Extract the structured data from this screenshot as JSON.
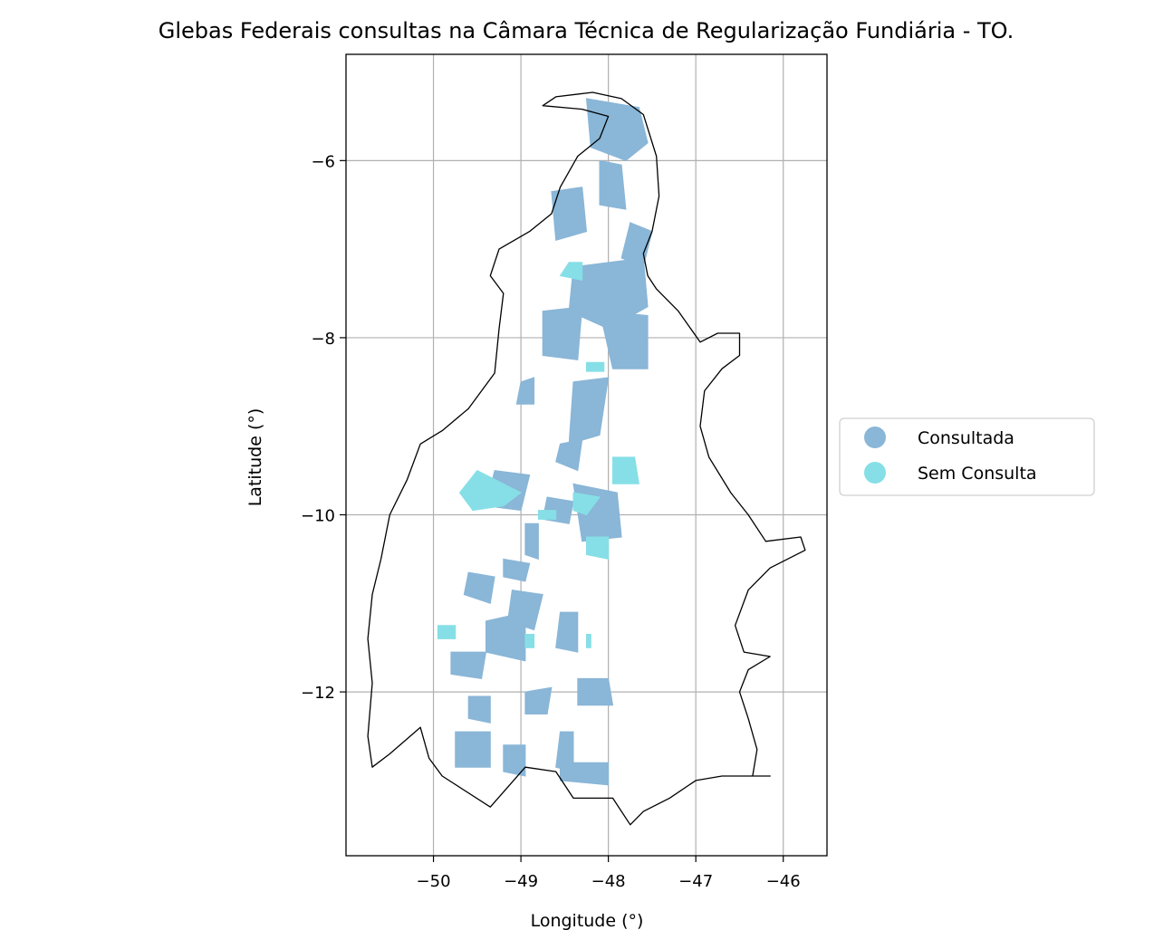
{
  "title": "Glebas Federais consultas na Câmara Técnica de Regularização Fundiária - TO.",
  "xlabel": "Longitude (°)",
  "ylabel": "Latitude (°)",
  "legend": {
    "placement": "right-center",
    "entries": [
      {
        "label": "Consultada",
        "color": "#8ab6d7"
      },
      {
        "label": "Sem Consulta",
        "color": "#86dfe6"
      }
    ]
  },
  "colors": {
    "consultada": "#8ab6d7",
    "sem_consulta": "#86dfe6",
    "border": "#000000",
    "grid": "#b0b0b0"
  },
  "chart_data": {
    "type": "map",
    "xlim": [
      -51.0,
      -45.5
    ],
    "ylim": [
      -13.85,
      -4.8
    ],
    "grid": true,
    "xticks": [
      -50,
      -49,
      -48,
      -47,
      -46
    ],
    "yticks": [
      -6,
      -8,
      -10,
      -12
    ],
    "xtick_labels": [
      "−50",
      "−49",
      "−48",
      "−47",
      "−46"
    ],
    "ytick_labels": [
      "−6",
      "−8",
      "−10",
      "−12"
    ],
    "state_outline": [
      [
        -48.18,
        -5.23
      ],
      [
        -47.85,
        -5.3
      ],
      [
        -47.6,
        -5.48
      ],
      [
        -47.45,
        -5.95
      ],
      [
        -47.42,
        -6.4
      ],
      [
        -47.5,
        -6.8
      ],
      [
        -47.6,
        -7.05
      ],
      [
        -47.55,
        -7.3
      ],
      [
        -47.45,
        -7.45
      ],
      [
        -47.2,
        -7.7
      ],
      [
        -46.95,
        -8.05
      ],
      [
        -46.75,
        -7.95
      ],
      [
        -46.5,
        -7.95
      ],
      [
        -46.5,
        -8.2
      ],
      [
        -46.7,
        -8.35
      ],
      [
        -46.9,
        -8.6
      ],
      [
        -46.95,
        -9.0
      ],
      [
        -46.85,
        -9.35
      ],
      [
        -46.6,
        -9.75
      ],
      [
        -46.4,
        -10.0
      ],
      [
        -46.2,
        -10.3
      ],
      [
        -45.8,
        -10.25
      ],
      [
        -45.75,
        -10.4
      ],
      [
        -46.15,
        -10.6
      ],
      [
        -46.4,
        -10.85
      ],
      [
        -46.55,
        -11.25
      ],
      [
        -46.45,
        -11.55
      ],
      [
        -46.15,
        -11.6
      ],
      [
        -46.4,
        -11.75
      ],
      [
        -46.5,
        -12.0
      ],
      [
        -46.4,
        -12.3
      ],
      [
        -46.3,
        -12.65
      ],
      [
        -46.35,
        -12.95
      ],
      [
        -46.15,
        -12.95
      ],
      [
        -46.7,
        -12.95
      ],
      [
        -47.0,
        -13.0
      ],
      [
        -47.3,
        -13.2
      ],
      [
        -47.6,
        -13.35
      ],
      [
        -47.75,
        -13.5
      ],
      [
        -47.95,
        -13.2
      ],
      [
        -48.4,
        -13.2
      ],
      [
        -48.6,
        -12.9
      ],
      [
        -48.95,
        -12.85
      ],
      [
        -49.35,
        -13.3
      ],
      [
        -49.9,
        -12.95
      ],
      [
        -50.05,
        -12.75
      ],
      [
        -50.15,
        -12.4
      ],
      [
        -50.5,
        -12.7
      ],
      [
        -50.7,
        -12.85
      ],
      [
        -50.75,
        -12.5
      ],
      [
        -50.7,
        -11.9
      ],
      [
        -50.75,
        -11.4
      ],
      [
        -50.7,
        -10.9
      ],
      [
        -50.6,
        -10.5
      ],
      [
        -50.5,
        -10.0
      ],
      [
        -50.3,
        -9.6
      ],
      [
        -50.15,
        -9.2
      ],
      [
        -49.9,
        -9.05
      ],
      [
        -49.6,
        -8.8
      ],
      [
        -49.3,
        -8.4
      ],
      [
        -49.25,
        -7.9
      ],
      [
        -49.2,
        -7.5
      ],
      [
        -49.35,
        -7.3
      ],
      [
        -49.25,
        -7.0
      ],
      [
        -48.9,
        -6.8
      ],
      [
        -48.65,
        -6.6
      ],
      [
        -48.55,
        -6.3
      ],
      [
        -48.35,
        -5.95
      ],
      [
        -48.1,
        -5.75
      ],
      [
        -48.0,
        -5.5
      ],
      [
        -48.3,
        -5.42
      ],
      [
        -48.75,
        -5.38
      ],
      [
        -48.6,
        -5.28
      ],
      [
        -48.18,
        -5.23
      ]
    ],
    "consultada_areas": [
      [
        [
          -48.25,
          -5.3
        ],
        [
          -47.65,
          -5.4
        ],
        [
          -47.55,
          -5.8
        ],
        [
          -47.8,
          -6.0
        ],
        [
          -48.2,
          -5.85
        ]
      ],
      [
        [
          -48.65,
          -6.35
        ],
        [
          -48.3,
          -6.3
        ],
        [
          -48.25,
          -6.8
        ],
        [
          -48.6,
          -6.9
        ]
      ],
      [
        [
          -48.1,
          -6.0
        ],
        [
          -47.85,
          -6.05
        ],
        [
          -47.8,
          -6.55
        ],
        [
          -48.1,
          -6.5
        ]
      ],
      [
        [
          -47.75,
          -6.7
        ],
        [
          -47.5,
          -6.8
        ],
        [
          -47.6,
          -7.2
        ],
        [
          -47.85,
          -7.1
        ]
      ],
      [
        [
          -48.4,
          -7.2
        ],
        [
          -47.6,
          -7.1
        ],
        [
          -47.55,
          -7.65
        ],
        [
          -48.0,
          -7.9
        ],
        [
          -48.45,
          -7.7
        ]
      ],
      [
        [
          -48.75,
          -7.7
        ],
        [
          -48.3,
          -7.65
        ],
        [
          -48.35,
          -8.25
        ],
        [
          -48.75,
          -8.2
        ]
      ],
      [
        [
          -48.1,
          -7.7
        ],
        [
          -47.55,
          -7.75
        ],
        [
          -47.55,
          -8.35
        ],
        [
          -47.95,
          -8.35
        ]
      ],
      [
        [
          -48.4,
          -8.5
        ],
        [
          -48.0,
          -8.45
        ],
        [
          -48.1,
          -9.1
        ],
        [
          -48.45,
          -9.2
        ]
      ],
      [
        [
          -49.0,
          -8.5
        ],
        [
          -48.85,
          -8.45
        ],
        [
          -48.85,
          -8.75
        ],
        [
          -49.05,
          -8.75
        ]
      ],
      [
        [
          -48.55,
          -9.2
        ],
        [
          -48.3,
          -9.15
        ],
        [
          -48.35,
          -9.5
        ],
        [
          -48.6,
          -9.4
        ]
      ],
      [
        [
          -49.3,
          -9.5
        ],
        [
          -48.9,
          -9.55
        ],
        [
          -49.0,
          -9.95
        ],
        [
          -49.4,
          -9.9
        ]
      ],
      [
        [
          -48.4,
          -9.65
        ],
        [
          -47.9,
          -9.75
        ],
        [
          -47.85,
          -10.25
        ],
        [
          -48.3,
          -10.3
        ]
      ],
      [
        [
          -48.7,
          -9.8
        ],
        [
          -48.4,
          -9.85
        ],
        [
          -48.45,
          -10.1
        ],
        [
          -48.75,
          -10.05
        ]
      ],
      [
        [
          -49.2,
          -10.5
        ],
        [
          -48.9,
          -10.55
        ],
        [
          -48.95,
          -10.75
        ],
        [
          -49.2,
          -10.7
        ]
      ],
      [
        [
          -49.6,
          -10.65
        ],
        [
          -49.3,
          -10.7
        ],
        [
          -49.35,
          -11.0
        ],
        [
          -49.65,
          -10.9
        ]
      ],
      [
        [
          -49.1,
          -10.85
        ],
        [
          -48.75,
          -10.9
        ],
        [
          -48.85,
          -11.3
        ],
        [
          -49.15,
          -11.2
        ]
      ],
      [
        [
          -49.4,
          -11.2
        ],
        [
          -48.95,
          -11.1
        ],
        [
          -48.95,
          -11.65
        ],
        [
          -49.4,
          -11.55
        ]
      ],
      [
        [
          -49.8,
          -11.55
        ],
        [
          -49.4,
          -11.55
        ],
        [
          -49.45,
          -11.85
        ],
        [
          -49.8,
          -11.8
        ]
      ],
      [
        [
          -48.55,
          -11.1
        ],
        [
          -48.35,
          -11.1
        ],
        [
          -48.35,
          -11.55
        ],
        [
          -48.6,
          -11.5
        ]
      ],
      [
        [
          -48.95,
          -12.0
        ],
        [
          -48.65,
          -11.95
        ],
        [
          -48.7,
          -12.25
        ],
        [
          -48.95,
          -12.25
        ]
      ],
      [
        [
          -48.35,
          -11.85
        ],
        [
          -48.0,
          -11.85
        ],
        [
          -47.95,
          -12.15
        ],
        [
          -48.35,
          -12.15
        ]
      ],
      [
        [
          -48.55,
          -12.45
        ],
        [
          -48.4,
          -12.45
        ],
        [
          -48.4,
          -12.9
        ],
        [
          -48.6,
          -12.85
        ]
      ],
      [
        [
          -49.6,
          -12.05
        ],
        [
          -49.35,
          -12.05
        ],
        [
          -49.35,
          -12.35
        ],
        [
          -49.6,
          -12.3
        ]
      ],
      [
        [
          -49.75,
          -12.45
        ],
        [
          -49.35,
          -12.45
        ],
        [
          -49.35,
          -12.85
        ],
        [
          -49.75,
          -12.85
        ]
      ],
      [
        [
          -48.55,
          -12.8
        ],
        [
          -48.0,
          -12.8
        ],
        [
          -48.0,
          -13.05
        ],
        [
          -48.55,
          -13.0
        ]
      ],
      [
        [
          -49.2,
          -12.6
        ],
        [
          -48.95,
          -12.6
        ],
        [
          -48.95,
          -12.95
        ],
        [
          -49.2,
          -12.9
        ]
      ],
      [
        [
          -48.95,
          -10.1
        ],
        [
          -48.8,
          -10.1
        ],
        [
          -48.8,
          -10.5
        ],
        [
          -48.95,
          -10.45
        ]
      ]
    ],
    "sem_consulta_areas": [
      [
        [
          -49.5,
          -9.5
        ],
        [
          -49.0,
          -9.75
        ],
        [
          -49.2,
          -9.9
        ],
        [
          -49.55,
          -9.95
        ],
        [
          -49.7,
          -9.75
        ]
      ],
      [
        [
          -47.95,
          -9.35
        ],
        [
          -47.7,
          -9.35
        ],
        [
          -47.65,
          -9.65
        ],
        [
          -47.95,
          -9.65
        ]
      ],
      [
        [
          -48.45,
          -7.15
        ],
        [
          -48.3,
          -7.15
        ],
        [
          -48.3,
          -7.35
        ],
        [
          -48.55,
          -7.3
        ]
      ],
      [
        [
          -48.4,
          -9.75
        ],
        [
          -48.1,
          -9.8
        ],
        [
          -48.25,
          -10.0
        ],
        [
          -48.4,
          -9.95
        ]
      ],
      [
        [
          -48.25,
          -10.25
        ],
        [
          -48.0,
          -10.25
        ],
        [
          -48.0,
          -10.5
        ],
        [
          -48.25,
          -10.45
        ]
      ],
      [
        [
          -48.25,
          -8.28
        ],
        [
          -48.05,
          -8.28
        ],
        [
          -48.05,
          -8.38
        ],
        [
          -48.25,
          -8.38
        ]
      ],
      [
        [
          -48.8,
          -9.95
        ],
        [
          -48.6,
          -9.95
        ],
        [
          -48.6,
          -10.05
        ],
        [
          -48.8,
          -10.05
        ]
      ],
      [
        [
          -49.95,
          -11.25
        ],
        [
          -49.75,
          -11.25
        ],
        [
          -49.75,
          -11.4
        ],
        [
          -49.95,
          -11.4
        ]
      ],
      [
        [
          -48.95,
          -11.35
        ],
        [
          -48.85,
          -11.35
        ],
        [
          -48.85,
          -11.5
        ],
        [
          -48.95,
          -11.5
        ]
      ],
      [
        [
          -48.25,
          -11.35
        ],
        [
          -48.2,
          -11.35
        ],
        [
          -48.2,
          -11.5
        ],
        [
          -48.25,
          -11.5
        ]
      ]
    ]
  }
}
